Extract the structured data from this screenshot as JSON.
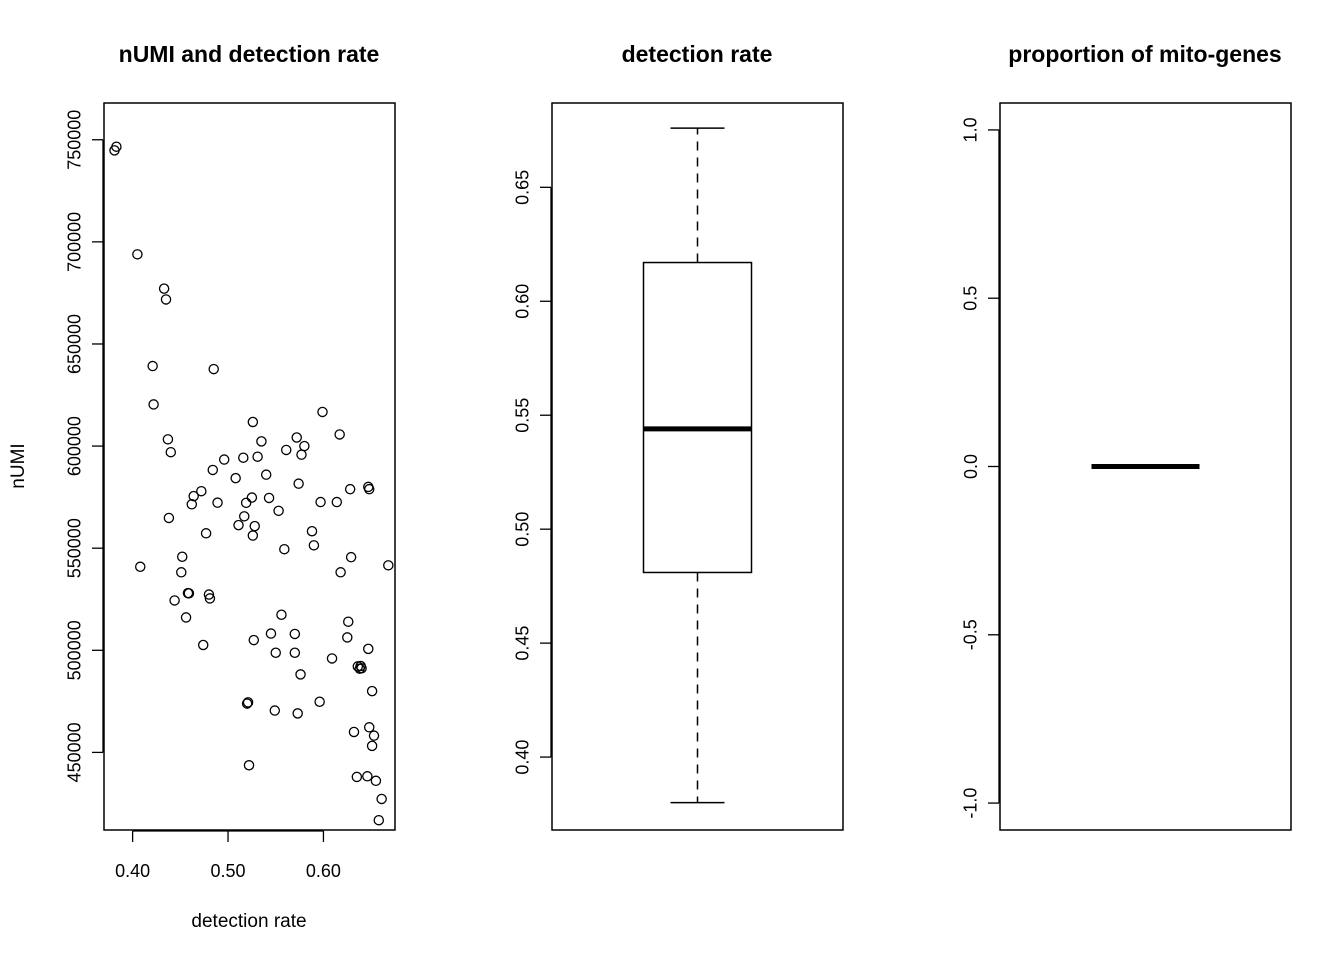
{
  "chart_data": [
    {
      "type": "scatter",
      "title": "nUMI and detection rate",
      "xlabel": "detection rate",
      "ylabel": "nUMI",
      "xlim": [
        0.37,
        0.675
      ],
      "ylim": [
        412000,
        768000
      ],
      "x_ticks": [
        0.4,
        0.5,
        0.6
      ],
      "x_tick_labels": [
        "0.40",
        "0.50",
        "0.60"
      ],
      "y_ticks": [
        450000,
        500000,
        550000,
        600000,
        650000,
        700000,
        750000
      ],
      "y_tick_labels": [
        "450000",
        "500000",
        "550000",
        "600000",
        "650000",
        "700000",
        "750000"
      ],
      "marker": "open circle",
      "grid": false,
      "points": [
        [
          0.381,
          744800
        ],
        [
          0.383,
          746600
        ],
        [
          0.405,
          693900
        ],
        [
          0.408,
          540900
        ],
        [
          0.433,
          677100
        ],
        [
          0.435,
          671800
        ],
        [
          0.421,
          639200
        ],
        [
          0.422,
          620400
        ],
        [
          0.437,
          603300
        ],
        [
          0.44,
          597000
        ],
        [
          0.438,
          564800
        ],
        [
          0.444,
          524400
        ],
        [
          0.451,
          538200
        ],
        [
          0.452,
          545800
        ],
        [
          0.456,
          516100
        ],
        [
          0.458,
          528000
        ],
        [
          0.459,
          527900
        ],
        [
          0.462,
          571500
        ],
        [
          0.464,
          575500
        ],
        [
          0.472,
          577900
        ],
        [
          0.474,
          502600
        ],
        [
          0.477,
          557300
        ],
        [
          0.48,
          527300
        ],
        [
          0.481,
          525400
        ],
        [
          0.484,
          588300
        ],
        [
          0.485,
          637700
        ],
        [
          0.489,
          572300
        ],
        [
          0.496,
          593400
        ],
        [
          0.508,
          584300
        ],
        [
          0.511,
          561300
        ],
        [
          0.516,
          594300
        ],
        [
          0.517,
          565600
        ],
        [
          0.519,
          572200
        ],
        [
          0.52,
          473900
        ],
        [
          0.521,
          474500
        ],
        [
          0.522,
          443700
        ],
        [
          0.525,
          574800
        ],
        [
          0.526,
          611800
        ],
        [
          0.526,
          556200
        ],
        [
          0.527,
          505000
        ],
        [
          0.528,
          560800
        ],
        [
          0.531,
          594800
        ],
        [
          0.535,
          602300
        ],
        [
          0.54,
          586000
        ],
        [
          0.543,
          574600
        ],
        [
          0.545,
          508200
        ],
        [
          0.549,
          470500
        ],
        [
          0.55,
          498800
        ],
        [
          0.553,
          568300
        ],
        [
          0.556,
          517400
        ],
        [
          0.559,
          549500
        ],
        [
          0.561,
          598100
        ],
        [
          0.57,
          508000
        ],
        [
          0.57,
          498800
        ],
        [
          0.572,
          604200
        ],
        [
          0.573,
          469100
        ],
        [
          0.574,
          581600
        ],
        [
          0.576,
          488200
        ],
        [
          0.577,
          595800
        ],
        [
          0.58,
          600000
        ],
        [
          0.588,
          558300
        ],
        [
          0.59,
          551400
        ],
        [
          0.596,
          474800
        ],
        [
          0.597,
          572600
        ],
        [
          0.599,
          616700
        ],
        [
          0.609,
          496000
        ],
        [
          0.614,
          572600
        ],
        [
          0.617,
          605700
        ],
        [
          0.618,
          538200
        ],
        [
          0.625,
          506300
        ],
        [
          0.626,
          514000
        ],
        [
          0.628,
          578900
        ],
        [
          0.629,
          545600
        ],
        [
          0.632,
          460000
        ],
        [
          0.635,
          438000
        ],
        [
          0.636,
          492100
        ],
        [
          0.638,
          491000
        ],
        [
          0.639,
          492300
        ],
        [
          0.64,
          491200
        ],
        [
          0.646,
          438300
        ],
        [
          0.647,
          500700
        ],
        [
          0.647,
          580000
        ],
        [
          0.648,
          578900
        ],
        [
          0.648,
          462300
        ],
        [
          0.651,
          480000
        ],
        [
          0.651,
          453200
        ],
        [
          0.653,
          458200
        ],
        [
          0.655,
          436100
        ],
        [
          0.658,
          416800
        ],
        [
          0.661,
          427200
        ],
        [
          0.668,
          541600
        ]
      ]
    },
    {
      "type": "boxplot",
      "title": "detection rate",
      "ylim": [
        0.368,
        0.687
      ],
      "y_ticks": [
        0.4,
        0.45,
        0.5,
        0.55,
        0.6,
        0.65
      ],
      "y_tick_labels": [
        "0.40",
        "0.45",
        "0.50",
        "0.55",
        "0.60",
        "0.65"
      ],
      "whisker_low": 0.38,
      "q1": 0.481,
      "median": 0.544,
      "q3": 0.617,
      "whisker_high": 0.676
    },
    {
      "type": "boxplot",
      "title": "proportion of mito-genes",
      "ylim": [
        -1.08,
        1.08
      ],
      "y_ticks": [
        -1.0,
        -0.5,
        0.0,
        0.5,
        1.0
      ],
      "y_tick_labels": [
        "-1.0",
        "-0.5",
        "0.0",
        "0.5",
        "1.0"
      ],
      "whisker_low": 0.0,
      "q1": 0.0,
      "median": 0.0,
      "q3": 0.0,
      "whisker_high": 0.0
    }
  ]
}
